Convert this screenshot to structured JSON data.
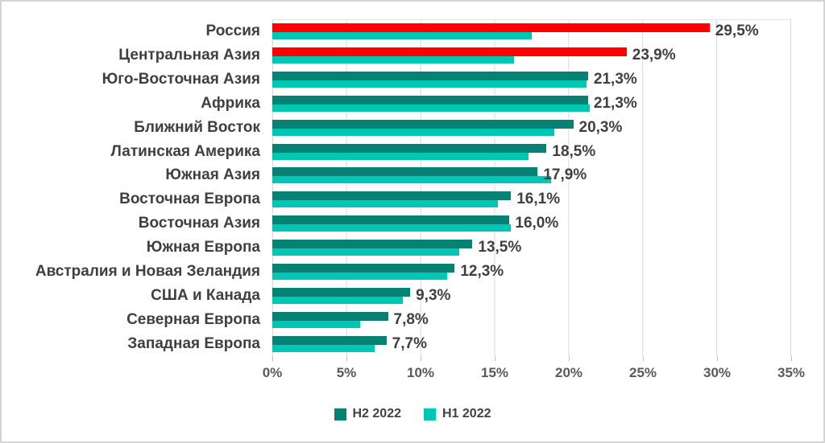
{
  "chart_data": {
    "type": "bar",
    "orientation": "horizontal",
    "title": "",
    "categories": [
      "Россия",
      "Центральная Азия",
      "Юго-Восточная Азия",
      "Африка",
      "Ближний Восток",
      "Латинская Америка",
      "Южная Азия",
      "Восточная Европа",
      "Восточная Азия",
      "Южная Европа",
      "Австралия и Новая Зеландия",
      "США и Канада",
      "Северная Европа",
      "Западная Европа"
    ],
    "series": [
      {
        "name": "H2 2022",
        "color": "#068174",
        "values": [
          29.5,
          23.9,
          21.3,
          21.3,
          20.3,
          18.5,
          17.9,
          16.1,
          16.0,
          13.5,
          12.3,
          9.3,
          7.8,
          7.7
        ],
        "value_labels": [
          "29,5%",
          "23,9%",
          "21,3%",
          "21,3%",
          "20,3%",
          "18,5%",
          "17,9%",
          "16,1%",
          "16,0%",
          "13,5%",
          "12,3%",
          "9,3%",
          "7,8%",
          "7,7%"
        ]
      },
      {
        "name": "H1 2022",
        "color": "#00c7b3",
        "values": [
          17.5,
          16.3,
          21.2,
          21.4,
          19.0,
          17.3,
          18.8,
          15.2,
          16.1,
          12.6,
          11.8,
          8.8,
          5.9,
          6.9
        ],
        "values_estimated_from_bars": true
      }
    ],
    "highlight": {
      "applies_to_series": "H2 2022",
      "categories": [
        "Россия",
        "Центральная Азия"
      ],
      "indices": [
        0,
        1
      ],
      "color": "#ff0000"
    },
    "x_ticks": [
      "0%",
      "5%",
      "10%",
      "15%",
      "20%",
      "25%",
      "30%",
      "35%"
    ],
    "xlim": [
      0,
      35
    ],
    "grid": true,
    "legend_position": "bottom",
    "legend": [
      {
        "label": "H2 2022",
        "color": "#068174"
      },
      {
        "label": "H1 2022",
        "color": "#00c7b3"
      }
    ]
  },
  "colors": {
    "category_text": "#3f3f3f",
    "value_text": "#3f3f3f",
    "axis_text": "#595959",
    "gridline": "#d9d9d9",
    "background": "#ffffff",
    "border": "#d4d4d4"
  }
}
